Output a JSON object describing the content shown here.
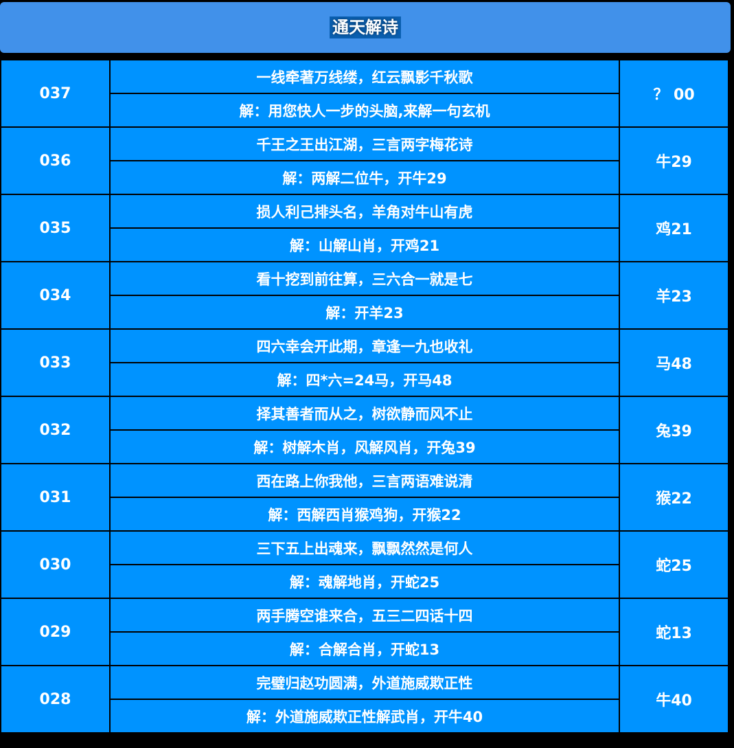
{
  "header": {
    "title": "通天解诗"
  },
  "colors": {
    "cell": "#0093ff",
    "header": "#4191ea",
    "border": "#000000"
  },
  "rows": [
    {
      "issue": "037",
      "poem": "一线牵著万线缕，红云飘影千秋歌",
      "solution": "解：用您快人一步的头脑,来解一句玄机",
      "answer": "？ 00"
    },
    {
      "issue": "036",
      "poem": "千王之王出江湖，三言两字梅花诗",
      "solution": "解：两解二位牛，开牛29",
      "answer": "牛29"
    },
    {
      "issue": "035",
      "poem": "损人利己排头名，羊角对牛山有虎",
      "solution": "解：山解山肖，开鸡21",
      "answer": "鸡21"
    },
    {
      "issue": "034",
      "poem": "看十挖到前往算，三六合一就是七",
      "solution": "解：开羊23",
      "answer": "羊23"
    },
    {
      "issue": "033",
      "poem": "四六幸会开此期，章逢一九也收礼",
      "solution": "解：四*六=24马，开马48",
      "answer": "马48"
    },
    {
      "issue": "032",
      "poem": "择其善者而从之，树欲静而风不止",
      "solution": "解：树解木肖，风解风肖，开兔39",
      "answer": "兔39"
    },
    {
      "issue": "031",
      "poem": "西在路上你我他，三言两语难说清",
      "solution": "解：西解西肖猴鸡狗，开猴22",
      "answer": "猴22"
    },
    {
      "issue": "030",
      "poem": "三下五上出魂来，飘飘然然是何人",
      "solution": "解：魂解地肖，开蛇25",
      "answer": "蛇25"
    },
    {
      "issue": "029",
      "poem": "两手腾空谁来合，五三二四话十四",
      "solution": "解：合解合肖，开蛇13",
      "answer": "蛇13"
    },
    {
      "issue": "028",
      "poem": "完璧归赵功圆满，外道施威欺正性",
      "solution": "解：外道施威欺正性解武肖，开牛40",
      "answer": "牛40"
    }
  ]
}
